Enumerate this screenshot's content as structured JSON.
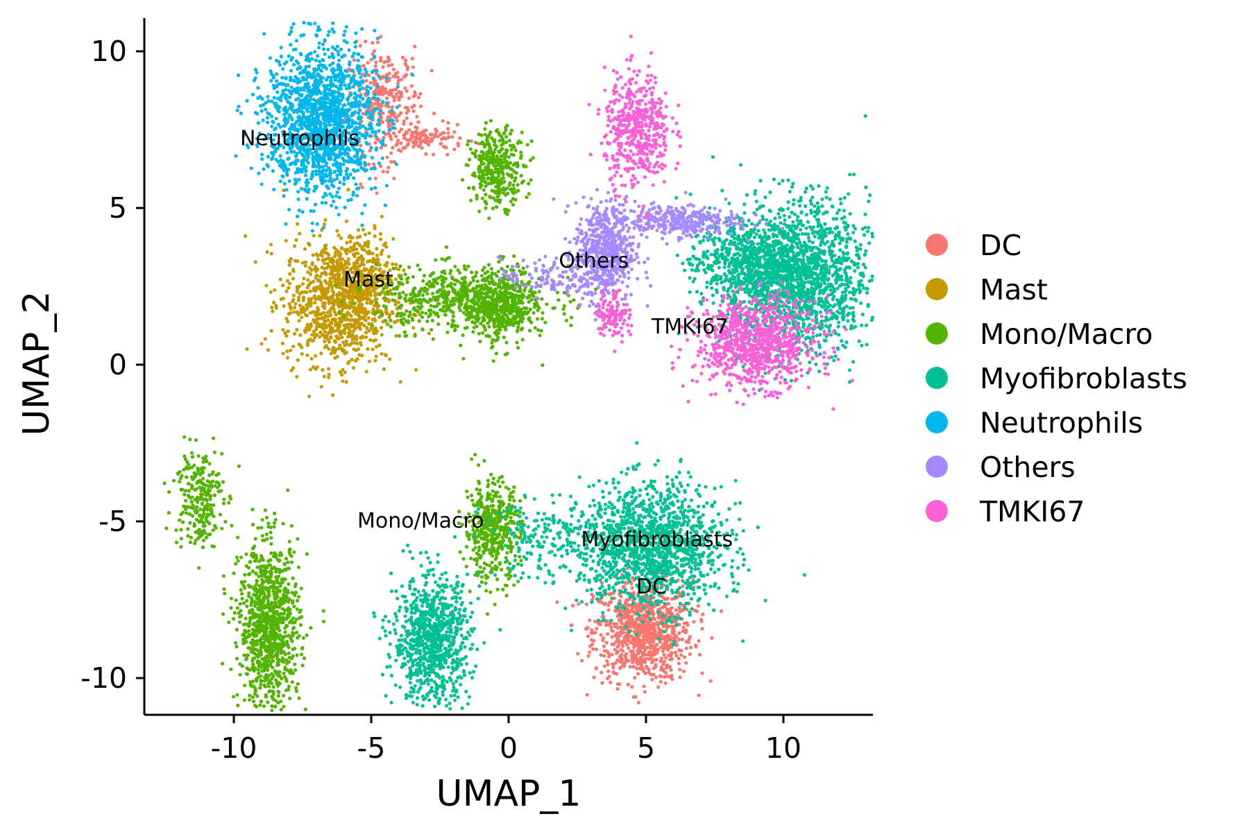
{
  "chart_data": {
    "type": "scatter",
    "title": "",
    "xlabel": "UMAP_1",
    "ylabel": "UMAP_2",
    "xlim": [
      -13.2,
      13.2
    ],
    "ylim": [
      -11.2,
      11
    ],
    "x_ticks": [
      -10,
      -5,
      0,
      5,
      10
    ],
    "x_tick_labels": [
      "-10",
      "-5",
      "0",
      "5",
      "10"
    ],
    "y_ticks": [
      -10,
      -5,
      0,
      5,
      10
    ],
    "y_tick_labels": [
      "-10",
      "-5",
      "0",
      "5",
      "10"
    ],
    "grid": false,
    "legend_position": "right",
    "series": [
      {
        "name": "DC",
        "color": "#F8766D",
        "clusters": [
          {
            "cx": 4.9,
            "cy": -8.5,
            "sx": 0.9,
            "sy": 0.8,
            "n": 900
          },
          {
            "cx": -4.5,
            "cy": 8.3,
            "sx": 0.65,
            "sy": 0.9,
            "n": 300
          },
          {
            "cx": -3.0,
            "cy": 7.2,
            "sx": 0.7,
            "sy": 0.2,
            "n": 100
          }
        ]
      },
      {
        "name": "Mast",
        "color": "#C49A00",
        "clusters": [
          {
            "cx": -6.2,
            "cy": 2.0,
            "sx": 1.0,
            "sy": 1.0,
            "n": 1000
          },
          {
            "cx": -5.2,
            "cy": 3.0,
            "sx": 0.5,
            "sy": 0.6,
            "n": 200
          }
        ]
      },
      {
        "name": "Mono/Macro",
        "color": "#53B400",
        "clusters": [
          {
            "cx": -1.6,
            "cy": 2.1,
            "sx": 1.6,
            "sy": 0.5,
            "n": 650
          },
          {
            "cx": -0.3,
            "cy": 1.8,
            "sx": 0.6,
            "sy": 0.6,
            "n": 350
          },
          {
            "cx": -0.4,
            "cy": 6.3,
            "sx": 0.5,
            "sy": 0.6,
            "n": 350
          },
          {
            "cx": -0.6,
            "cy": -5.3,
            "sx": 0.5,
            "sy": 0.8,
            "n": 450
          },
          {
            "cx": -8.7,
            "cy": -8.3,
            "sx": 0.55,
            "sy": 1.3,
            "n": 1000
          },
          {
            "cx": -11.3,
            "cy": -4.2,
            "sx": 0.45,
            "sy": 0.8,
            "n": 250
          }
        ]
      },
      {
        "name": "Myofibroblasts",
        "color": "#00C094",
        "clusters": [
          {
            "cx": 10.5,
            "cy": 2.8,
            "sx": 1.3,
            "sy": 1.2,
            "n": 1700
          },
          {
            "cx": 8.6,
            "cy": 3.3,
            "sx": 1.0,
            "sy": 0.6,
            "n": 500
          },
          {
            "cx": 5.2,
            "cy": -5.8,
            "sx": 1.3,
            "sy": 1.0,
            "n": 1400
          },
          {
            "cx": -2.8,
            "cy": -8.8,
            "sx": 0.7,
            "sy": 1.0,
            "n": 900
          },
          {
            "cx": 1.5,
            "cy": -5.6,
            "sx": 1.2,
            "sy": 0.6,
            "n": 200
          }
        ]
      },
      {
        "name": "Neutrophils",
        "color": "#00B6EB",
        "clusters": [
          {
            "cx": -6.8,
            "cy": 7.8,
            "sx": 1.0,
            "sy": 1.2,
            "n": 1600
          }
        ]
      },
      {
        "name": "Others",
        "color": "#A58AFF",
        "clusters": [
          {
            "cx": 3.5,
            "cy": 3.6,
            "sx": 0.55,
            "sy": 0.8,
            "n": 550
          },
          {
            "cx": 6.0,
            "cy": 4.6,
            "sx": 1.2,
            "sy": 0.25,
            "n": 350
          },
          {
            "cx": 1.5,
            "cy": 2.8,
            "sx": 0.9,
            "sy": 0.3,
            "n": 120
          }
        ]
      },
      {
        "name": "TMKI67",
        "color": "#FB61D7",
        "clusters": [
          {
            "cx": 4.7,
            "cy": 7.5,
            "sx": 0.6,
            "sy": 0.9,
            "n": 500
          },
          {
            "cx": 9.0,
            "cy": 0.7,
            "sx": 1.1,
            "sy": 0.7,
            "n": 900
          },
          {
            "cx": 3.8,
            "cy": 1.6,
            "sx": 0.3,
            "sy": 0.4,
            "n": 120
          }
        ]
      }
    ],
    "annotations": [
      {
        "text": "Neutrophils",
        "x": -7.6,
        "y": 7.0
      },
      {
        "text": "Mast",
        "x": -5.1,
        "y": 2.5
      },
      {
        "text": "Others",
        "x": 3.1,
        "y": 3.1
      },
      {
        "text": "TMKI67",
        "x": 6.6,
        "y": 1.0
      },
      {
        "text": "Mono/Macro",
        "x": -3.2,
        "y": -5.2
      },
      {
        "text": "Myofibroblasts",
        "x": 5.4,
        "y": -5.8
      },
      {
        "text": "DC",
        "x": 5.2,
        "y": -7.3
      }
    ]
  }
}
